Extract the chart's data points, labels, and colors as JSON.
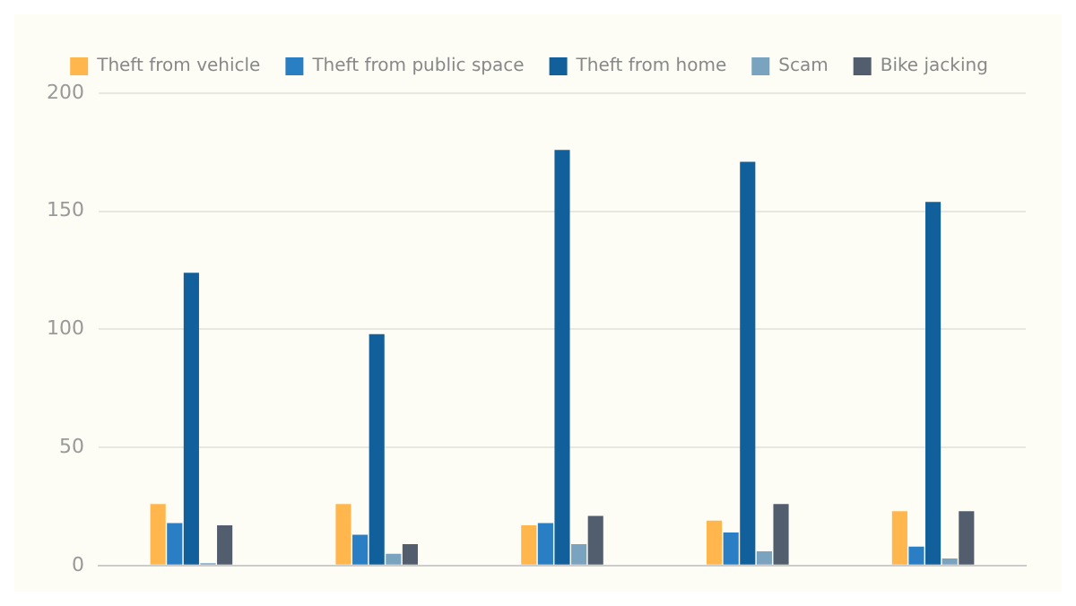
{
  "chart_data": {
    "type": "bar",
    "categories": [
      null,
      null,
      null,
      null,
      null
    ],
    "series": [
      {
        "name": "Theft from vehicle",
        "color": "#ffb74d",
        "values": [
          26,
          26,
          17,
          19,
          23
        ]
      },
      {
        "name": "Theft from public space",
        "color": "#2a7fc4",
        "values": [
          18,
          13,
          18,
          14,
          8
        ]
      },
      {
        "name": "Theft from home",
        "color": "#12609b",
        "values": [
          124,
          98,
          176,
          171,
          154
        ]
      },
      {
        "name": "Scam",
        "color": "#7aa3c0",
        "values": [
          1,
          5,
          9,
          6,
          3
        ]
      },
      {
        "name": "Bike jacking",
        "color": "#525e6e",
        "values": [
          17,
          9,
          21,
          26,
          23
        ]
      }
    ],
    "ylim": [
      0,
      200
    ],
    "yticks": [
      0,
      50,
      100,
      150,
      200
    ],
    "grid": "y",
    "legend": "top",
    "tick_labels": "y"
  }
}
